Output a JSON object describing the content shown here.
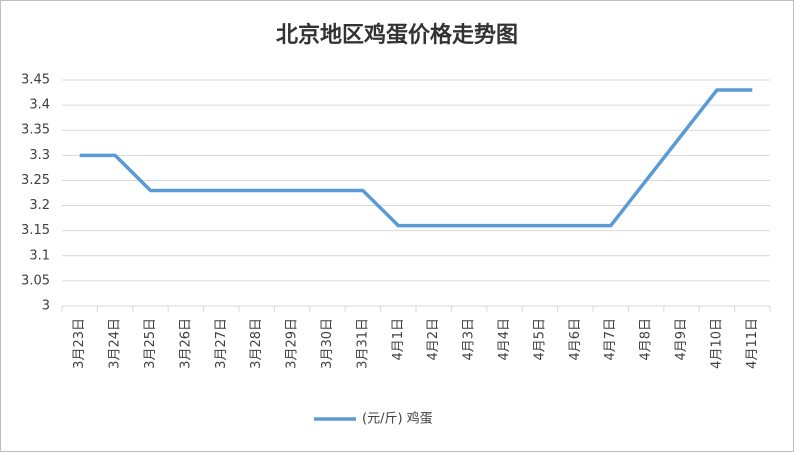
{
  "chart_data": {
    "type": "line",
    "title": "北京地区鸡蛋价格走势图",
    "categories": [
      "3月23日",
      "3月24日",
      "3月25日",
      "3月26日",
      "3月27日",
      "3月28日",
      "3月29日",
      "3月30日",
      "3月31日",
      "4月1日",
      "4月2日",
      "4月3日",
      "4月4日",
      "4月5日",
      "4月6日",
      "4月7日",
      "4月8日",
      "4月9日",
      "4月10日",
      "4月11日"
    ],
    "series": [
      {
        "name": "(元/斤) 鸡蛋",
        "color": "#5b9bd5",
        "values": [
          3.3,
          3.3,
          3.23,
          3.23,
          3.23,
          3.23,
          3.23,
          3.23,
          3.23,
          3.16,
          3.16,
          3.16,
          3.16,
          3.16,
          3.16,
          3.16,
          3.25,
          3.34,
          3.43,
          3.43
        ]
      }
    ],
    "ylim": [
      3,
      3.45
    ],
    "yticks": [
      3,
      3.05,
      3.1,
      3.15,
      3.2,
      3.25,
      3.3,
      3.35,
      3.4,
      3.45
    ],
    "grid": true
  }
}
